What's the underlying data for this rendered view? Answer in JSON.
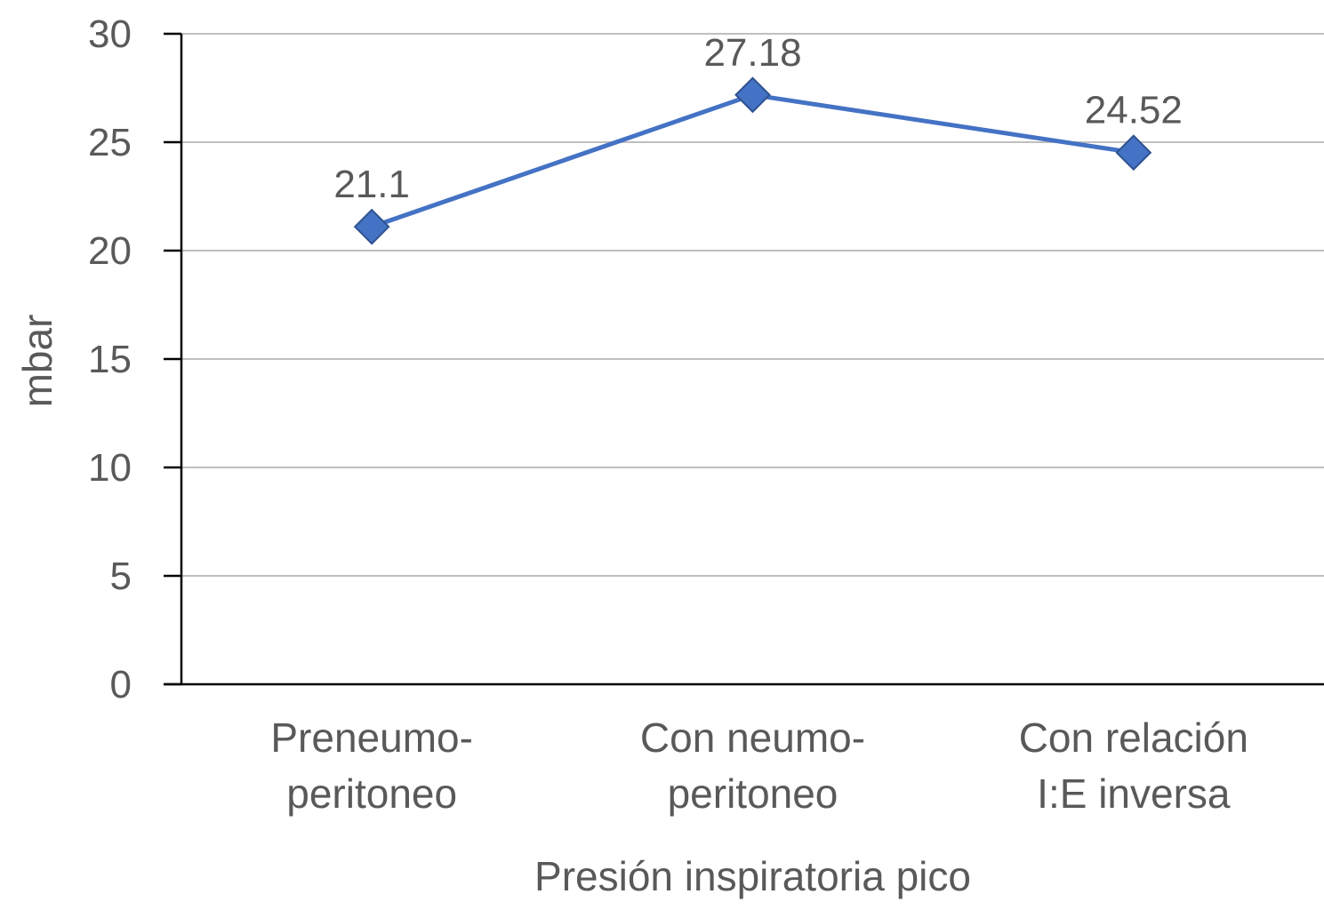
{
  "chart_data": {
    "type": "line",
    "title": "",
    "xlabel": "Presión inspiratoria pico",
    "ylabel": "mbar",
    "ylim": [
      0,
      30
    ],
    "yticks": [
      0,
      5,
      10,
      15,
      20,
      25,
      30
    ],
    "grid": true,
    "legend": "none",
    "categories": [
      [
        "Preneumo-",
        "peritoneo"
      ],
      [
        "Con neumo-",
        "peritoneo"
      ],
      [
        "Con relación",
        "I:E inversa"
      ]
    ],
    "series": [
      {
        "values": [
          21.1,
          27.18,
          24.52
        ],
        "labels": [
          "21.1",
          "27.18",
          "24.52"
        ],
        "color": "#4472c4",
        "marker": "diamond"
      }
    ]
  }
}
